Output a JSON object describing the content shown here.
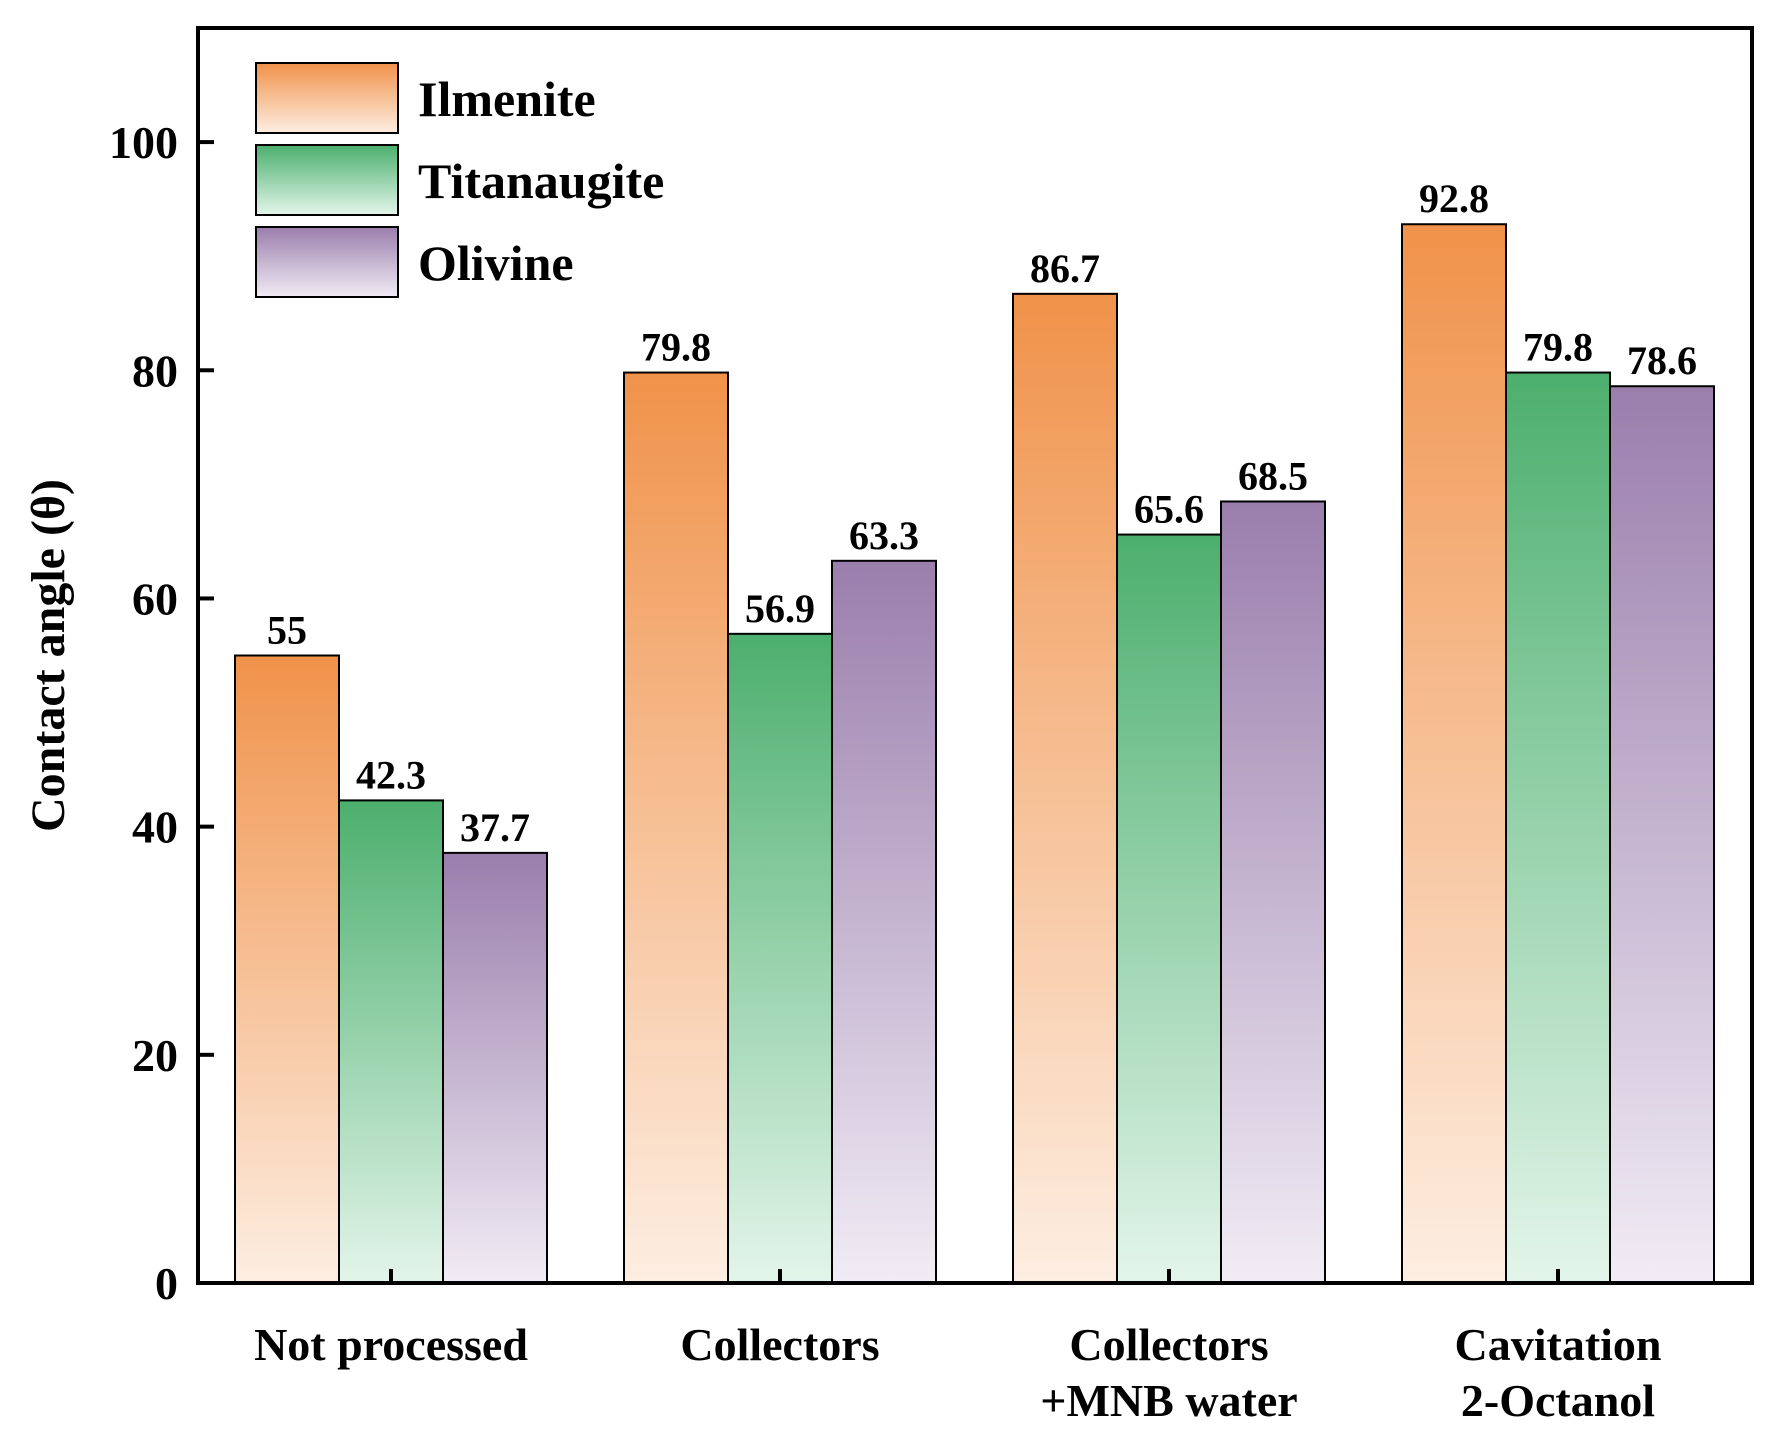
{
  "chart_data": {
    "type": "bar",
    "title": "",
    "xlabel": "",
    "ylabel": "Contact angle (θ)",
    "ylim": [
      0,
      110
    ],
    "yticks": [
      0,
      20,
      40,
      60,
      80,
      100
    ],
    "grid": false,
    "legend_position": "top-left",
    "categories": [
      [
        "Not processed"
      ],
      [
        "Collectors"
      ],
      [
        "Collectors",
        "+MNB water"
      ],
      [
        "Cavitation",
        "2-Octanol"
      ]
    ],
    "series": [
      {
        "name": "Ilmenite",
        "values": [
          55,
          79.8,
          86.7,
          92.8
        ],
        "labels": [
          "55",
          "79.8",
          "86.7",
          "92.8"
        ],
        "color_top": "#f0924a",
        "color_bottom": "#fdeee2"
      },
      {
        "name": "Titanaugite",
        "values": [
          42.3,
          56.9,
          65.6,
          79.8
        ],
        "labels": [
          "42.3",
          "56.9",
          "65.6",
          "79.8"
        ],
        "color_top": "#4caf6e",
        "color_bottom": "#e3f5ea"
      },
      {
        "name": "Olivine",
        "values": [
          37.7,
          63.3,
          68.5,
          78.6
        ],
        "labels": [
          "37.7",
          "63.3",
          "68.5",
          "78.6"
        ],
        "color_top": "#9a7eac",
        "color_bottom": "#f1ecf5"
      }
    ]
  }
}
